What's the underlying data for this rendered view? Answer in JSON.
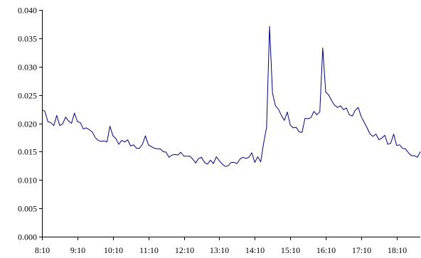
{
  "chart_data": {
    "type": "line",
    "title": "",
    "xlabel": "",
    "ylabel": "",
    "ylim": [
      0,
      0.04
    ],
    "yticks": [
      "0.000",
      "0.005",
      "0.010",
      "0.015",
      "0.020",
      "0.025",
      "0.030",
      "0.035",
      "0.040"
    ],
    "yticks_values": [
      0,
      0.005,
      0.01,
      0.015,
      0.02,
      0.025,
      0.03,
      0.035,
      0.04
    ],
    "xticks": [
      "8:10",
      "9:10",
      "10:10",
      "11:10",
      "12:10",
      "13:10",
      "14:10",
      "15:10",
      "16:10",
      "17:10",
      "18:10"
    ],
    "x_start": "8:10",
    "x_interval_minutes": 5,
    "grid": false,
    "legend": "none",
    "series": [
      {
        "color": "#000080",
        "values": [
          0.0224,
          0.0221,
          0.0203,
          0.0201,
          0.0196,
          0.0214,
          0.0196,
          0.0199,
          0.0211,
          0.0204,
          0.02,
          0.0218,
          0.0203,
          0.0201,
          0.019,
          0.0192,
          0.0189,
          0.0185,
          0.0175,
          0.017,
          0.0168,
          0.0169,
          0.0167,
          0.0195,
          0.0178,
          0.0173,
          0.0163,
          0.017,
          0.0167,
          0.0171,
          0.016,
          0.0162,
          0.0156,
          0.0156,
          0.0163,
          0.0178,
          0.0162,
          0.0159,
          0.0156,
          0.0155,
          0.0155,
          0.015,
          0.0149,
          0.014,
          0.0144,
          0.0145,
          0.0144,
          0.0149,
          0.0142,
          0.0142,
          0.0142,
          0.0137,
          0.013,
          0.0138,
          0.014,
          0.0131,
          0.0128,
          0.0135,
          0.0129,
          0.0141,
          0.0134,
          0.0128,
          0.0124,
          0.0125,
          0.0131,
          0.0131,
          0.0129,
          0.0137,
          0.014,
          0.0138,
          0.014,
          0.0148,
          0.0131,
          0.0141,
          0.0132,
          0.0165,
          0.0193,
          0.0371,
          0.0253,
          0.0231,
          0.0225,
          0.0214,
          0.0205,
          0.022,
          0.0197,
          0.0192,
          0.0193,
          0.0185,
          0.0184,
          0.0209,
          0.0208,
          0.021,
          0.0221,
          0.0215,
          0.022,
          0.0333,
          0.0255,
          0.025,
          0.024,
          0.0232,
          0.0228,
          0.0231,
          0.0224,
          0.0227,
          0.0215,
          0.0213,
          0.0223,
          0.0228,
          0.0212,
          0.0202,
          0.0192,
          0.0181,
          0.0177,
          0.0181,
          0.0171,
          0.0174,
          0.0179,
          0.0163,
          0.0165,
          0.0181,
          0.0161,
          0.0162,
          0.0156,
          0.0155,
          0.0148,
          0.0143,
          0.0143,
          0.014,
          0.015
        ]
      }
    ]
  }
}
